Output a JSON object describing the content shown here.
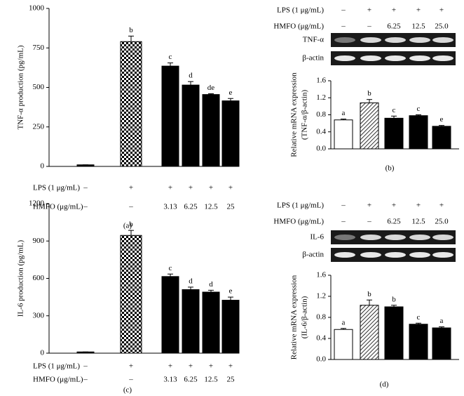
{
  "chart_data": [
    {
      "type": "bar",
      "panel_label": "(a)",
      "ylabel": [
        "TNF-α production (pg/mL)"
      ],
      "ylim": [
        0,
        1000
      ],
      "yticks": [
        0,
        250,
        500,
        750,
        1000
      ],
      "values": [
        10,
        790,
        635,
        515,
        455,
        415
      ],
      "errors": [
        0,
        35,
        20,
        22,
        5,
        15
      ],
      "annotations": [
        null,
        "b",
        "c",
        "d",
        "de",
        "e"
      ],
      "fills": [
        "black",
        "checker",
        "black",
        "black",
        "black",
        "black"
      ],
      "rows": [
        {
          "label": "LPS (1 μg/mL)",
          "cells": [
            "–",
            "+",
            "+",
            "+",
            "+",
            "+"
          ]
        },
        {
          "label": "HMFO (μg/mL)",
          "cells": [
            "–",
            "–",
            "3.13",
            "6.25",
            "12.5",
            "25"
          ]
        }
      ]
    },
    {
      "type": "bar",
      "panel_label": "(b)",
      "ylabel": [
        "Relative mRNA expression",
        "(TNF-α/β-actin)"
      ],
      "ylim": [
        0,
        1.6
      ],
      "yticks": [
        {
          "value": 0,
          "label": "0.0"
        },
        0.4,
        0.8,
        1.2,
        1.6
      ],
      "values": [
        0.68,
        1.08,
        0.72,
        0.78,
        0.53
      ],
      "errors": [
        0.02,
        0.08,
        0.05,
        0.02,
        0.02
      ],
      "annotations": [
        "a",
        "b",
        "c",
        "c",
        "e"
      ],
      "fills": [
        "white",
        "hatch",
        "black",
        "black",
        "black"
      ],
      "gel_labels": [
        "TNF-α",
        "β-actin"
      ],
      "rows": [
        {
          "label": "LPS (1 μg/mL)",
          "cells": [
            "–",
            "+",
            "+",
            "+",
            "+"
          ]
        },
        {
          "label": "HMFO (μg/mL)",
          "cells": [
            "–",
            "–",
            "6.25",
            "12.5",
            "25.0"
          ]
        }
      ]
    },
    {
      "type": "bar",
      "panel_label": "(c)",
      "ylabel": [
        "IL-6 production (pg/mL)"
      ],
      "ylim": [
        0,
        1200
      ],
      "yticks": [
        0,
        300,
        600,
        900,
        1200
      ],
      "values": [
        10,
        945,
        615,
        510,
        490,
        425
      ],
      "errors": [
        0,
        40,
        20,
        20,
        15,
        25
      ],
      "annotations": [
        null,
        "b",
        "c",
        "d",
        "d",
        "e"
      ],
      "fills": [
        "black",
        "checker",
        "black",
        "black",
        "black",
        "black"
      ],
      "rows": [
        {
          "label": "LPS (1 μg/mL)",
          "cells": [
            "–",
            "+",
            "+",
            "+",
            "+",
            "+"
          ]
        },
        {
          "label": "HMFO (μg/mL)",
          "cells": [
            "–",
            "–",
            "3.13",
            "6.25",
            "12.5",
            "25"
          ]
        }
      ]
    },
    {
      "type": "bar",
      "panel_label": "(d)",
      "ylabel": [
        "Relative mRNA expression",
        "(IL-6/β-actin)"
      ],
      "ylim": [
        0,
        1.6
      ],
      "yticks": [
        {
          "value": 0,
          "label": "0.0"
        },
        0.4,
        0.8,
        1.2,
        1.6
      ],
      "values": [
        0.57,
        1.03,
        1.0,
        0.67,
        0.6
      ],
      "errors": [
        0.02,
        0.1,
        0.03,
        0.02,
        0.02
      ],
      "annotations": [
        "a",
        "b",
        "b",
        "c",
        "a"
      ],
      "fills": [
        "white",
        "hatch",
        "black",
        "black",
        "black"
      ],
      "gel_labels": [
        "IL-6",
        "β-actin"
      ],
      "rows": [
        {
          "label": "LPS (1 μg/mL)",
          "cells": [
            "–",
            "+",
            "+",
            "+",
            "+"
          ]
        },
        {
          "label": "HMFO (μg/mL)",
          "cells": [
            "–",
            "–",
            "6.25",
            "12.5",
            "25.0"
          ]
        }
      ]
    }
  ]
}
